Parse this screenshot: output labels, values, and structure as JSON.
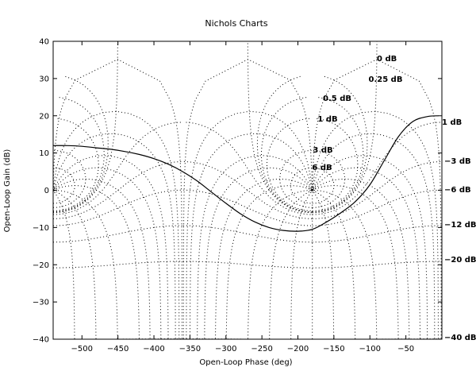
{
  "chart_data": {
    "type": "line",
    "title": "Nichols Charts",
    "xlabel": "Open-Loop Phase (deg)",
    "ylabel": "Open-Loop Gain (dB)",
    "xlim": [
      -540,
      0
    ],
    "ylim": [
      -40,
      40
    ],
    "xticks": [
      -500,
      -450,
      -400,
      -350,
      -300,
      -250,
      -200,
      -150,
      -100,
      -50
    ],
    "xtick_labels": [
      "−500",
      "−450",
      "−400",
      "−350",
      "−300",
      "−250",
      "−200",
      "−150",
      "−100",
      "−50"
    ],
    "yticks": [
      40,
      30,
      20,
      10,
      0,
      -10,
      -20,
      -30,
      -40
    ],
    "ytick_labels": [
      "40",
      "30",
      "20",
      "10",
      "0",
      "−10",
      "−20",
      "−30",
      "−40"
    ],
    "grid": "Nichols grid (dotted)",
    "closed_loop_magnitude_labels": [
      {
        "text": "0 dB",
        "value": 0
      },
      {
        "text": "0.25 dB",
        "value": 0.25
      },
      {
        "text": "0.5 dB",
        "value": 0.5
      },
      {
        "text": "1 dB",
        "value": 1
      },
      {
        "text": "3 dB",
        "value": 3
      },
      {
        "text": "6 dB",
        "value": 6
      },
      {
        "text": "1 dB",
        "value": 1
      },
      {
        "text": "−3 dB",
        "value": -3
      },
      {
        "text": "−6 dB",
        "value": -6
      },
      {
        "text": "−12 dB",
        "value": -12
      },
      {
        "text": "−20 dB",
        "value": -20
      },
      {
        "text": "−40 dB",
        "value": -40
      }
    ],
    "series": [
      {
        "x": [
          -540,
          -520,
          -500,
          -480,
          -460,
          -440,
          -420,
          -400,
          -380,
          -360,
          -340,
          -320,
          -300,
          -280,
          -260,
          -240,
          -220,
          -200,
          -180,
          -160,
          -140,
          -120,
          -100,
          -80,
          -60,
          -40,
          -20,
          -5
        ],
        "y": [
          12,
          12,
          11.8,
          11.4,
          11,
          10.4,
          9.6,
          8.5,
          7,
          5,
          2.5,
          -0.5,
          -3.5,
          -6.3,
          -8.5,
          -10,
          -10.8,
          -11,
          -10.5,
          -8.5,
          -6,
          -3,
          1.5,
          8,
          14.5,
          18.5,
          19.8,
          20
        ]
      }
    ]
  }
}
